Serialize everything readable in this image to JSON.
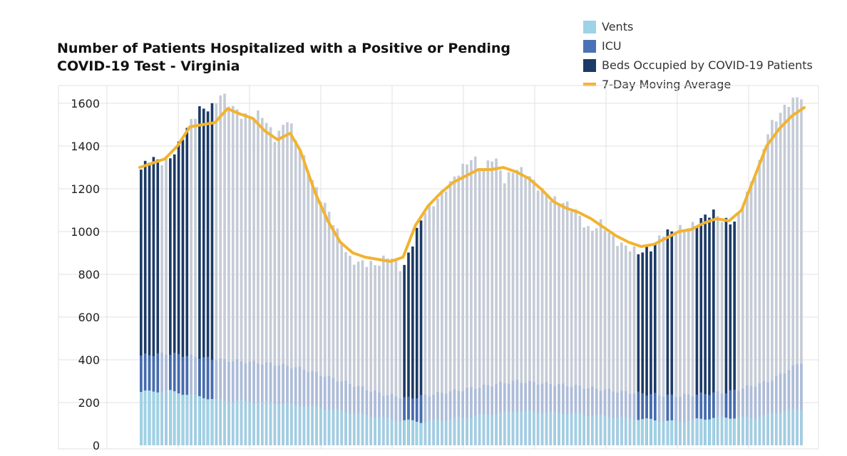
{
  "chart_data": {
    "type": "bar",
    "title_line1": "Number of Patients Hospitalized with a Positive or Pending",
    "title_line2": "COVID-19 Test - Virginia",
    "xlabel": "",
    "ylabel": "",
    "ylim": [
      0,
      1650
    ],
    "yticks": [
      0,
      200,
      400,
      600,
      800,
      1000,
      1200,
      1400,
      1600
    ],
    "grid": true,
    "legend_position": "top-right",
    "colors": {
      "vents": "#9dd3e6",
      "icu": "#4a72b8",
      "beds": "#1c3a66",
      "avg": "#f2b330",
      "bar_light": "#c5cbd6",
      "grid": "#e2e2e2"
    },
    "legend": [
      {
        "label": "Vents",
        "key": "vents",
        "kind": "box"
      },
      {
        "label": "ICU",
        "key": "icu",
        "kind": "box"
      },
      {
        "label": "Beds Occupied by COVID-19 Patients",
        "key": "beds",
        "kind": "box"
      },
      {
        "label": "7-Day Moving Average",
        "key": "avg",
        "kind": "line"
      }
    ],
    "days": 159,
    "beds_anchors": [
      [
        0,
        1290
      ],
      [
        3,
        1330
      ],
      [
        8,
        1330
      ],
      [
        13,
        1380
      ],
      [
        18,
        1490
      ],
      [
        22,
        1580
      ],
      [
        27,
        1590
      ],
      [
        30,
        1640
      ],
      [
        33,
        1590
      ],
      [
        38,
        1550
      ],
      [
        45,
        1540
      ],
      [
        50,
        1440
      ],
      [
        55,
        1540
      ],
      [
        58,
        1420
      ],
      [
        62,
        1300
      ],
      [
        65,
        1220
      ],
      [
        70,
        1100
      ],
      [
        74,
        970
      ],
      [
        78,
        875
      ],
      [
        83,
        860
      ],
      [
        88,
        830
      ],
      [
        93,
        900
      ],
      [
        98,
        820
      ],
      [
        102,
        950
      ],
      [
        106,
        1100
      ],
      [
        111,
        1160
      ],
      [
        116,
        1220
      ],
      [
        120,
        1300
      ],
      [
        124,
        1360
      ],
      [
        128,
        1280
      ],
      [
        132,
        1350
      ],
      [
        136,
        1250
      ],
      [
        140,
        1300
      ],
      [
        145,
        1250
      ],
      [
        150,
        1200
      ],
      [
        154,
        1150
      ],
      [
        159,
        1120
      ],
      [
        163,
        1100
      ],
      [
        168,
        1000
      ],
      [
        172,
        1030
      ],
      [
        177,
        970
      ],
      [
        182,
        930
      ],
      [
        186,
        890
      ],
      [
        191,
        930
      ],
      [
        195,
        1000
      ],
      [
        199,
        990
      ],
      [
        204,
        1020
      ],
      [
        209,
        1060
      ],
      [
        214,
        1080
      ],
      [
        218,
        1050
      ],
      [
        223,
        1060
      ],
      [
        227,
        1180
      ],
      [
        231,
        1300
      ],
      [
        235,
        1500
      ],
      [
        239,
        1550
      ],
      [
        243,
        1600
      ],
      [
        247,
        1640
      ]
    ],
    "icu_anchors": [
      [
        0,
        420
      ],
      [
        10,
        430
      ],
      [
        30,
        400
      ],
      [
        50,
        380
      ],
      [
        60,
        360
      ],
      [
        75,
        300
      ],
      [
        90,
        240
      ],
      [
        100,
        220
      ],
      [
        120,
        260
      ],
      [
        140,
        300
      ],
      [
        160,
        280
      ],
      [
        180,
        250
      ],
      [
        200,
        230
      ],
      [
        220,
        250
      ],
      [
        235,
        300
      ],
      [
        247,
        390
      ]
    ],
    "vents_anchors": [
      [
        0,
        250
      ],
      [
        10,
        255
      ],
      [
        30,
        210
      ],
      [
        50,
        200
      ],
      [
        65,
        180
      ],
      [
        80,
        150
      ],
      [
        95,
        120
      ],
      [
        105,
        110
      ],
      [
        120,
        130
      ],
      [
        140,
        160
      ],
      [
        160,
        150
      ],
      [
        180,
        130
      ],
      [
        200,
        110
      ],
      [
        215,
        130
      ],
      [
        230,
        130
      ],
      [
        240,
        160
      ],
      [
        247,
        170
      ]
    ],
    "avg_anchors": [
      [
        0,
        1300
      ],
      [
        5,
        1320
      ],
      [
        10,
        1340
      ],
      [
        15,
        1400
      ],
      [
        20,
        1490
      ],
      [
        25,
        1500
      ],
      [
        30,
        1510
      ],
      [
        35,
        1575
      ],
      [
        40,
        1550
      ],
      [
        45,
        1530
      ],
      [
        50,
        1470
      ],
      [
        55,
        1430
      ],
      [
        60,
        1460
      ],
      [
        64,
        1380
      ],
      [
        70,
        1180
      ],
      [
        75,
        1050
      ],
      [
        80,
        950
      ],
      [
        85,
        900
      ],
      [
        90,
        880
      ],
      [
        95,
        870
      ],
      [
        100,
        860
      ],
      [
        105,
        880
      ],
      [
        110,
        1030
      ],
      [
        115,
        1120
      ],
      [
        120,
        1180
      ],
      [
        125,
        1230
      ],
      [
        130,
        1260
      ],
      [
        135,
        1290
      ],
      [
        140,
        1290
      ],
      [
        145,
        1300
      ],
      [
        150,
        1280
      ],
      [
        155,
        1250
      ],
      [
        160,
        1200
      ],
      [
        165,
        1140
      ],
      [
        170,
        1110
      ],
      [
        175,
        1090
      ],
      [
        180,
        1060
      ],
      [
        185,
        1020
      ],
      [
        190,
        980
      ],
      [
        195,
        950
      ],
      [
        200,
        930
      ],
      [
        205,
        940
      ],
      [
        210,
        970
      ],
      [
        215,
        1000
      ],
      [
        220,
        1010
      ],
      [
        225,
        1040
      ],
      [
        230,
        1060
      ],
      [
        235,
        1050
      ],
      [
        240,
        1100
      ],
      [
        245,
        1250
      ],
      [
        250,
        1400
      ],
      [
        255,
        1480
      ],
      [
        260,
        1540
      ],
      [
        265,
        1580
      ]
    ]
  }
}
